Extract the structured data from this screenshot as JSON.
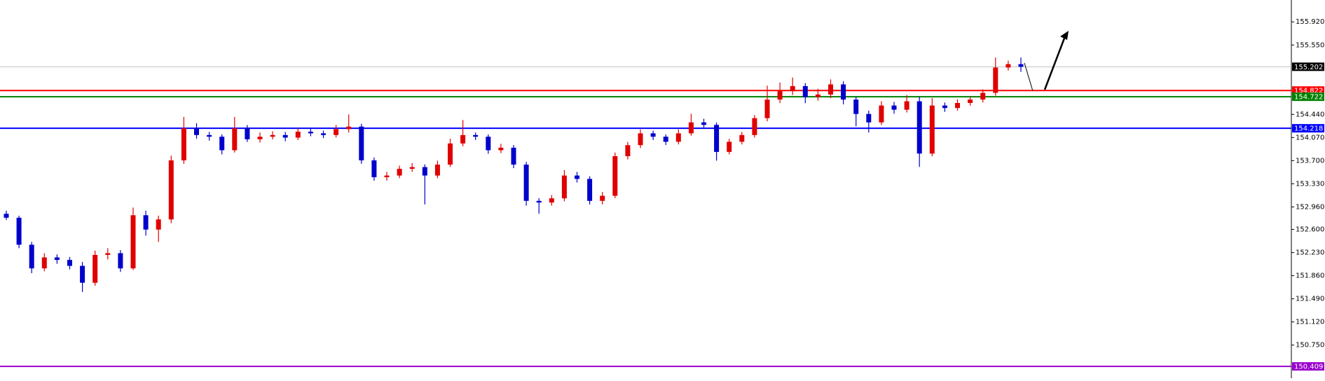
{
  "chart_data": {
    "type": "candlestick",
    "ylim": [
      150.22,
      156.27
    ],
    "yticks": [
      {
        "value": 155.92,
        "label": "155.920"
      },
      {
        "value": 155.55,
        "label": "155.550"
      },
      {
        "value": 154.44,
        "label": "154.440"
      },
      {
        "value": 154.07,
        "label": "154.070"
      },
      {
        "value": 153.7,
        "label": "153.700"
      },
      {
        "value": 153.33,
        "label": "153.330"
      },
      {
        "value": 152.96,
        "label": "152.960"
      },
      {
        "value": 152.6,
        "label": "152.600"
      },
      {
        "value": 152.23,
        "label": "152.230"
      },
      {
        "value": 151.86,
        "label": "151.860"
      },
      {
        "value": 151.49,
        "label": "151.490"
      },
      {
        "value": 151.12,
        "label": "151.120"
      },
      {
        "value": 150.75,
        "label": "150.750"
      }
    ],
    "up_color": "#e00000",
    "down_color": "#0000cc",
    "levels": [
      {
        "value": 155.202,
        "color": "#c0c0c0",
        "label_color": "#000000"
      },
      {
        "value": 154.822,
        "color": "#ff0000",
        "label_color": "#ff0000"
      },
      {
        "value": 154.722,
        "color": "#008000",
        "label_color": "#008000"
      },
      {
        "value": 154.218,
        "color": "#0000ff",
        "label_color": "#0000ff"
      },
      {
        "value": 150.409,
        "color": "#9900cc",
        "label_color": "#9900cc"
      }
    ],
    "candles": [
      [
        152.85,
        152.9,
        152.75,
        152.787
      ],
      [
        152.787,
        152.82,
        152.3,
        152.355
      ],
      [
        152.355,
        152.4,
        151.9,
        151.977
      ],
      [
        151.977,
        152.22,
        151.93,
        152.152
      ],
      [
        152.152,
        152.2,
        152.05,
        152.112
      ],
      [
        152.112,
        152.16,
        151.96,
        152.017
      ],
      [
        152.017,
        152.08,
        151.6,
        151.747
      ],
      [
        151.747,
        152.26,
        151.7,
        152.193
      ],
      [
        152.193,
        152.3,
        152.12,
        152.22
      ],
      [
        152.22,
        152.27,
        151.92,
        151.977
      ],
      [
        151.977,
        152.95,
        151.95,
        152.827
      ],
      [
        152.827,
        152.9,
        152.5,
        152.598
      ],
      [
        152.598,
        152.82,
        152.4,
        152.76
      ],
      [
        152.76,
        153.78,
        152.7,
        153.705
      ],
      [
        153.705,
        154.4,
        153.65,
        154.218
      ],
      [
        154.218,
        154.3,
        154.05,
        154.11
      ],
      [
        154.11,
        154.16,
        154.02,
        154.083
      ],
      [
        154.083,
        154.12,
        153.8,
        153.867
      ],
      [
        153.867,
        154.4,
        153.83,
        154.218
      ],
      [
        154.218,
        154.27,
        154.0,
        154.042
      ],
      [
        154.042,
        154.15,
        153.99,
        154.083
      ],
      [
        154.083,
        154.17,
        154.04,
        154.11
      ],
      [
        154.11,
        154.16,
        154.01,
        154.069
      ],
      [
        154.069,
        154.22,
        154.03,
        154.164
      ],
      [
        154.164,
        154.21,
        154.09,
        154.137
      ],
      [
        154.137,
        154.18,
        154.06,
        154.11
      ],
      [
        154.11,
        154.27,
        154.07,
        154.204
      ],
      [
        154.204,
        154.44,
        154.15,
        154.245
      ],
      [
        154.245,
        154.29,
        153.65,
        153.705
      ],
      [
        153.705,
        153.75,
        153.38,
        153.435
      ],
      [
        153.435,
        153.52,
        153.38,
        153.462
      ],
      [
        153.462,
        153.62,
        153.42,
        153.57
      ],
      [
        153.57,
        153.66,
        153.52,
        153.597
      ],
      [
        153.597,
        153.64,
        153.0,
        153.462
      ],
      [
        153.462,
        153.7,
        153.42,
        153.637
      ],
      [
        153.637,
        154.05,
        153.6,
        153.975
      ],
      [
        153.975,
        154.35,
        153.93,
        154.11
      ],
      [
        154.11,
        154.15,
        154.03,
        154.083
      ],
      [
        154.083,
        154.12,
        153.81,
        153.867
      ],
      [
        153.867,
        153.97,
        153.82,
        153.907
      ],
      [
        153.907,
        153.95,
        153.58,
        153.637
      ],
      [
        153.637,
        153.68,
        152.98,
        153.057
      ],
      [
        153.057,
        153.1,
        152.85,
        153.03
      ],
      [
        153.03,
        153.15,
        152.98,
        153.097
      ],
      [
        153.097,
        153.55,
        153.05,
        153.462
      ],
      [
        153.462,
        153.52,
        153.35,
        153.408
      ],
      [
        153.408,
        153.45,
        153.0,
        153.057
      ],
      [
        153.057,
        153.2,
        153.0,
        153.138
      ],
      [
        153.138,
        153.83,
        153.1,
        153.772
      ],
      [
        153.772,
        154.0,
        153.72,
        153.948
      ],
      [
        153.948,
        154.2,
        153.9,
        154.137
      ],
      [
        154.137,
        154.18,
        154.03,
        154.083
      ],
      [
        154.083,
        154.12,
        153.95,
        154.002
      ],
      [
        154.002,
        154.2,
        153.96,
        154.137
      ],
      [
        154.137,
        154.45,
        154.1,
        154.312
      ],
      [
        154.312,
        154.37,
        154.22,
        154.272
      ],
      [
        154.272,
        154.31,
        153.7,
        153.84
      ],
      [
        153.84,
        154.05,
        153.8,
        154.002
      ],
      [
        154.002,
        154.16,
        153.96,
        154.11
      ],
      [
        154.11,
        154.43,
        154.07,
        154.38
      ],
      [
        154.38,
        154.9,
        154.33,
        154.677
      ],
      [
        154.677,
        154.95,
        154.62,
        154.812
      ],
      [
        154.812,
        155.03,
        154.75,
        154.893
      ],
      [
        154.893,
        154.94,
        154.62,
        154.717
      ],
      [
        154.717,
        154.85,
        154.66,
        154.758
      ],
      [
        154.758,
        155.0,
        154.7,
        154.92
      ],
      [
        154.92,
        154.97,
        154.6,
        154.677
      ],
      [
        154.677,
        154.72,
        154.25,
        154.447
      ],
      [
        154.447,
        154.5,
        154.15,
        154.312
      ],
      [
        154.312,
        154.65,
        154.27,
        154.582
      ],
      [
        154.582,
        154.64,
        154.45,
        154.515
      ],
      [
        154.515,
        154.75,
        154.47,
        154.65
      ],
      [
        154.65,
        154.72,
        153.6,
        153.813
      ],
      [
        153.813,
        154.7,
        153.77,
        154.582
      ],
      [
        154.582,
        154.63,
        154.48,
        154.542
      ],
      [
        154.542,
        154.68,
        154.5,
        154.623
      ],
      [
        154.623,
        154.73,
        154.58,
        154.677
      ],
      [
        154.677,
        154.84,
        154.63,
        154.785
      ],
      [
        154.785,
        155.35,
        154.74,
        155.19
      ],
      [
        155.19,
        155.3,
        155.14,
        155.244
      ],
      [
        155.244,
        155.35,
        155.12,
        155.202
      ]
    ]
  }
}
